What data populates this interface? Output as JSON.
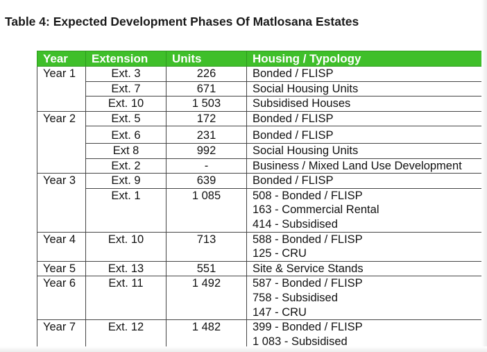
{
  "title": "Table 4: Expected Development Phases Of Matlosana Estates",
  "colors": {
    "header_bg": "#3fbf2a",
    "header_text": "#ffffff"
  },
  "headers": [
    "Year",
    "Extension",
    "Units",
    "Housing / Typology"
  ],
  "rows": [
    {
      "year": "Year 1",
      "extension": "Ext. 3",
      "units": "226",
      "typology": [
        "Bonded / FLISP"
      ]
    },
    {
      "year": "",
      "extension": "Ext. 7",
      "units": "671",
      "typology": [
        "Social Housing Units"
      ]
    },
    {
      "year": "",
      "extension": "Ext. 10",
      "units": "1 503",
      "typology": [
        "Subsidised Houses"
      ]
    },
    {
      "year": "Year 2",
      "extension": "Ext. 5",
      "units": "172",
      "typology": [
        "Bonded / FLISP"
      ]
    },
    {
      "year": "",
      "extension": "Ext. 6",
      "units": "231",
      "typology": [
        "Bonded / FLISP"
      ]
    },
    {
      "year": "",
      "extension": "Ext 8",
      "units": "992",
      "typology": [
        "Social Housing Units"
      ]
    },
    {
      "year": "",
      "extension": "Ext. 2",
      "units": "-",
      "typology": [
        "Business / Mixed Land Use Development"
      ]
    },
    {
      "year": "Year 3",
      "extension": "Ext. 9",
      "units": "639",
      "typology": [
        "Bonded / FLISP"
      ]
    },
    {
      "year": "",
      "extension": "Ext. 1",
      "units": "1 085",
      "typology": [
        "508 - Bonded / FLISP",
        "163 - Commercial Rental",
        "414 - Subsidised"
      ]
    },
    {
      "year": "Year 4",
      "extension": "Ext. 10",
      "units": "713",
      "typology": [
        "588 - Bonded / FLISP",
        "125 - CRU"
      ]
    },
    {
      "year": "Year 5",
      "extension": "Ext. 13",
      "units": "551",
      "typology": [
        "Site & Service Stands"
      ]
    },
    {
      "year": "Year 6",
      "extension": "Ext. 11",
      "units": "1 492",
      "typology": [
        "587 - Bonded / FLISP",
        "758 - Subsidised",
        "147 -  CRU"
      ]
    },
    {
      "year": "Year 7",
      "extension": "Ext. 12",
      "units": "1 482",
      "typology": [
        "399 - Bonded / FLISP",
        "1 083 - Subsidised"
      ]
    }
  ]
}
